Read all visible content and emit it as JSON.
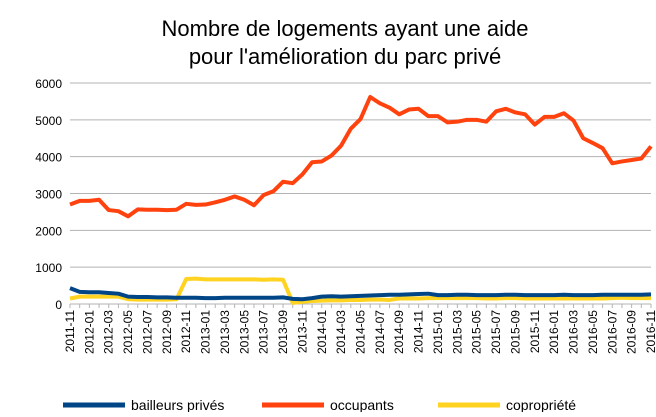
{
  "chart_data": {
    "type": "line",
    "title": [
      "Nombre de logements ayant une aide",
      "pour l'amélioration du parc privé"
    ],
    "categories": [
      "2011-11",
      null,
      "2012-01",
      null,
      "2012-03",
      null,
      "2012-05",
      null,
      "2012-07",
      null,
      "2012-09",
      null,
      "2012-11",
      null,
      "2013-01",
      null,
      "2013-03",
      null,
      "2013-05",
      null,
      "2013-07",
      null,
      "2013-09",
      null,
      "2013-11",
      null,
      "2014-01",
      null,
      "2014-03",
      null,
      "2014-05",
      null,
      "2014-07",
      null,
      "2014-09",
      null,
      "2014-11",
      null,
      "2015-01",
      null,
      "2015-03",
      null,
      "2015-05",
      null,
      "2015-07",
      null,
      "2015-09",
      null,
      "2015-11",
      null,
      "2016-01",
      null,
      "2016-03",
      null,
      "2016-05",
      null,
      "2016-07",
      null,
      "2016-09",
      null,
      "2016-11"
    ],
    "series": [
      {
        "name": "bailleurs privés",
        "color": "#004586",
        "values": [
          430,
          330,
          320,
          320,
          300,
          280,
          200,
          190,
          190,
          180,
          180,
          170,
          170,
          170,
          160,
          160,
          170,
          170,
          170,
          170,
          170,
          170,
          180,
          140,
          130,
          160,
          200,
          210,
          200,
          210,
          220,
          230,
          240,
          250,
          250,
          260,
          270,
          280,
          240,
          240,
          250,
          250,
          240,
          240,
          240,
          250,
          250,
          240,
          240,
          240,
          240,
          250,
          240,
          240,
          240,
          250,
          250,
          250,
          250,
          250,
          260
        ]
      },
      {
        "name": "occupants",
        "color": "#ff420e",
        "values": [
          2700,
          2800,
          2800,
          2830,
          2550,
          2520,
          2380,
          2570,
          2560,
          2560,
          2550,
          2560,
          2720,
          2690,
          2700,
          2760,
          2830,
          2920,
          2830,
          2680,
          2960,
          3060,
          3320,
          3280,
          3520,
          3850,
          3870,
          4030,
          4300,
          4760,
          5020,
          5620,
          5450,
          5330,
          5150,
          5280,
          5300,
          5100,
          5100,
          4930,
          4950,
          5000,
          5000,
          4950,
          5230,
          5300,
          5200,
          5150,
          4870,
          5080,
          5080,
          5180,
          4980,
          4500,
          4370,
          4230,
          3820,
          3870,
          3910,
          3950,
          4280
        ]
      },
      {
        "name": "copropriété",
        "color": "#ffd320",
        "values": [
          150,
          200,
          200,
          200,
          200,
          200,
          130,
          120,
          120,
          120,
          120,
          130,
          680,
          690,
          670,
          670,
          670,
          670,
          670,
          670,
          660,
          670,
          660,
          30,
          60,
          80,
          90,
          100,
          100,
          110,
          110,
          120,
          120,
          110,
          150,
          150,
          150,
          160,
          160,
          160,
          160,
          160,
          160,
          150,
          150,
          160,
          160,
          150,
          150,
          150,
          150,
          150,
          150,
          150,
          150,
          150,
          160,
          170,
          160,
          160,
          160
        ]
      }
    ],
    "ylim": [
      0,
      6000
    ],
    "yticks": [
      0,
      1000,
      2000,
      3000,
      4000,
      5000,
      6000
    ],
    "grid": true
  }
}
